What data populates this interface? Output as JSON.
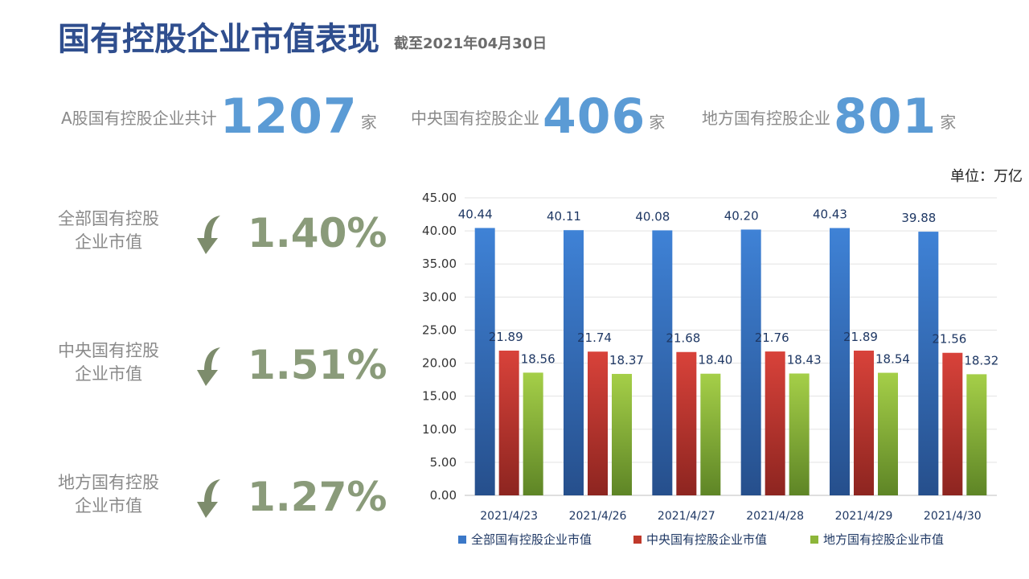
{
  "header": {
    "title": "国有控股企业市值表现",
    "date_note": "截至2021年04月30日"
  },
  "kpis": [
    {
      "label": "A股国有控股企业共计",
      "value": "1207",
      "unit": "家"
    },
    {
      "label": "中央国有控股企业",
      "value": "406",
      "unit": "家"
    },
    {
      "label": "地方国有控股企业",
      "value": "801",
      "unit": "家"
    }
  ],
  "changes": [
    {
      "label_line1": "全部国有控股",
      "label_line2": "企业市值",
      "value": "1.40%",
      "direction": "down"
    },
    {
      "label_line1": "中央国有控股",
      "label_line2": "企业市值",
      "value": "1.51%",
      "direction": "down"
    },
    {
      "label_line1": "地方国有控股",
      "label_line2": "企业市值",
      "value": "1.27%",
      "direction": "down"
    }
  ],
  "unit_label": "单位：万亿",
  "colors": {
    "title": "#2f4e8e",
    "kpi_value": "#5b9bd5",
    "change": "#8a9b7a",
    "series_blue": "#3b78c8",
    "series_red": "#c0392b",
    "series_green": "#8db63a"
  },
  "chart_data": {
    "type": "bar",
    "categories": [
      "2021/4/23",
      "2021/4/26",
      "2021/4/27",
      "2021/4/28",
      "2021/4/29",
      "2021/4/30"
    ],
    "series": [
      {
        "name": "全部国有控股企业市值",
        "values": [
          40.44,
          40.11,
          40.08,
          40.2,
          40.43,
          39.88
        ],
        "labels": [
          "40.44",
          "40.11",
          "40.08",
          "40.20",
          "40.43",
          "39.88"
        ]
      },
      {
        "name": "中央国有控股企业市值",
        "values": [
          21.89,
          21.74,
          21.68,
          21.76,
          21.89,
          21.56
        ],
        "labels": [
          "21.89",
          "21.74",
          "21.68",
          "21.76",
          "21.89",
          "21.56"
        ]
      },
      {
        "name": "地方国有控股企业市值",
        "values": [
          18.56,
          18.37,
          18.4,
          18.43,
          18.54,
          18.32
        ],
        "labels": [
          "18.56",
          "18.37",
          "18.40",
          "18.43",
          "18.54",
          "18.32"
        ]
      }
    ],
    "yticks": [
      "0.00",
      "5.00",
      "10.00",
      "15.00",
      "20.00",
      "25.00",
      "30.00",
      "35.00",
      "40.00",
      "45.00"
    ],
    "ylim": [
      0,
      45
    ],
    "grid": true,
    "legend": "bottom"
  }
}
